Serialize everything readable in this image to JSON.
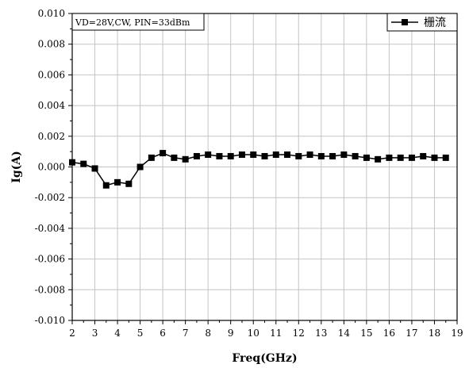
{
  "chart_data": {
    "type": "line",
    "xlabel": "Freq(GHz)",
    "ylabel": "Ig(A)",
    "xlim": [
      2,
      19
    ],
    "ylim": [
      -0.01,
      0.01
    ],
    "x_ticks": [
      "2",
      "3",
      "4",
      "5",
      "6",
      "7",
      "8",
      "9",
      "10",
      "11",
      "12",
      "13",
      "14",
      "15",
      "16",
      "17",
      "18",
      "19"
    ],
    "y_ticks": [
      "-0.010",
      "-0.008",
      "-0.006",
      "-0.004",
      "-0.002",
      "0.000",
      "0.002",
      "0.004",
      "0.006",
      "0.008",
      "0.010"
    ],
    "grid": true,
    "legend_position": "top-right",
    "annotation": "VD=28V,CW, PIN=33dBm",
    "series": [
      {
        "name": "栅流",
        "marker": "square",
        "color": "#000000",
        "x": [
          2,
          2.5,
          3,
          3.5,
          4,
          4.5,
          5,
          5.5,
          6,
          6.5,
          7,
          7.5,
          8,
          8.5,
          9,
          9.5,
          10,
          10.5,
          11,
          11.5,
          12,
          12.5,
          13,
          13.5,
          14,
          14.5,
          15,
          15.5,
          16,
          16.5,
          17,
          17.5,
          18,
          18.5
        ],
        "y": [
          0.0003,
          0.0002,
          -0.0001,
          -0.0012,
          -0.001,
          -0.0011,
          0.0,
          0.0006,
          0.0009,
          0.0006,
          0.0005,
          0.0007,
          0.0008,
          0.0007,
          0.0007,
          0.0008,
          0.0008,
          0.0007,
          0.0008,
          0.0008,
          0.0007,
          0.0008,
          0.0007,
          0.0007,
          0.0008,
          0.0007,
          0.0006,
          0.0005,
          0.0006,
          0.0006,
          0.0006,
          0.0007,
          0.0006,
          0.0006
        ]
      }
    ]
  }
}
